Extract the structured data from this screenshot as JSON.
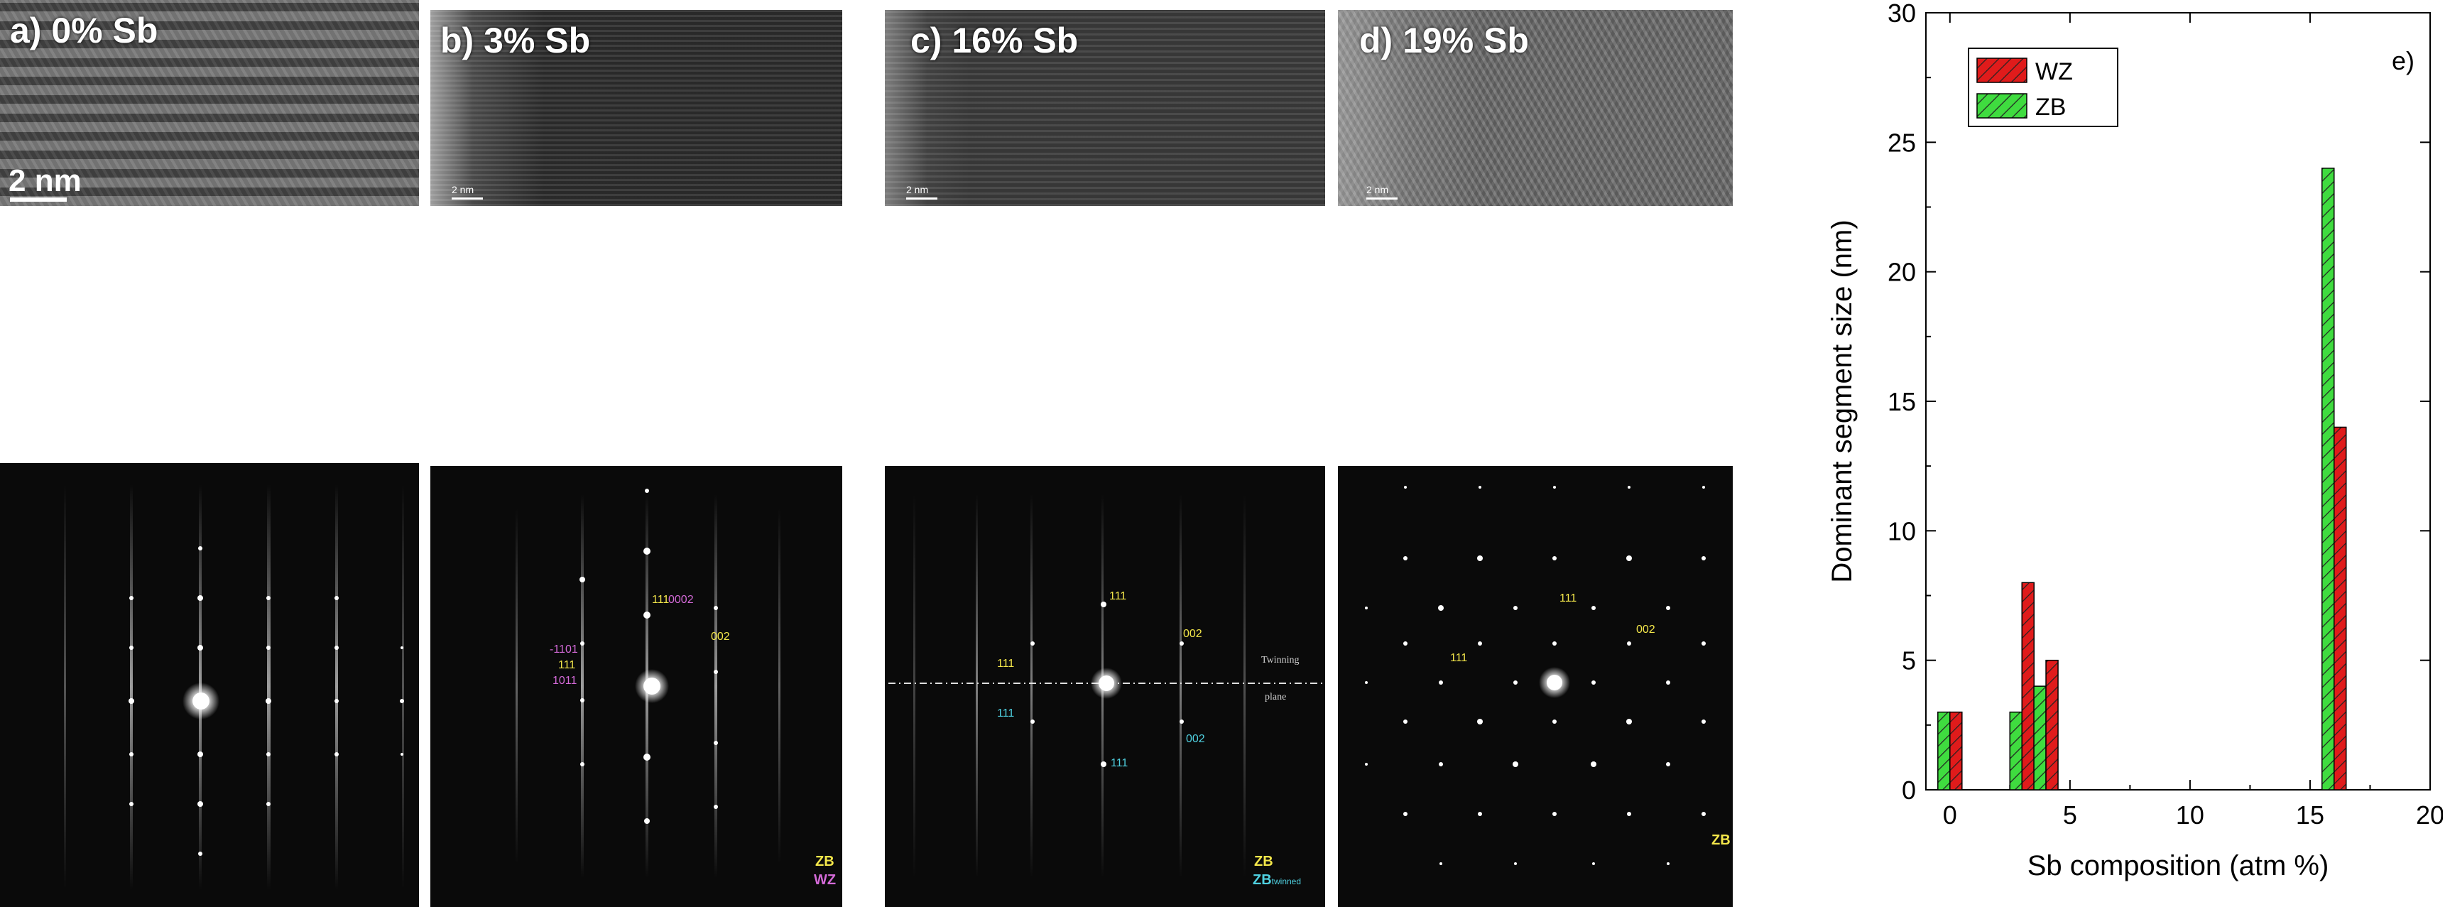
{
  "panels": {
    "a_label": "a) 0% Sb",
    "b_label": "b) 3% Sb",
    "c_label": "c) 16% Sb",
    "d_label": "d) 19% Sb",
    "scale_a": "2 nm",
    "scale_b": "2 nm",
    "scale_c": "2 nm",
    "scale_d": "2 nm"
  },
  "diffraction": {
    "b": {
      "l111_top": "111",
      "l0002": "0002",
      "l002": "002",
      "l1_101": "-1101",
      "l111_mid": "111",
      "l10_11": "1011",
      "zb": "ZB",
      "wz": "WZ"
    },
    "c": {
      "l111_top": "111",
      "l002_top": "002",
      "l111_left": "111",
      "twin1": "Twinning",
      "twin2": "plane",
      "l111_cyan_left": "111",
      "l002_cyan": "002",
      "l111_cyan_bottom": "111",
      "zb": "ZB",
      "zbt_main": "ZB",
      "zbt_sub": "twinned"
    },
    "d": {
      "l111_top": "111",
      "l002": "002",
      "l111_left": "111",
      "zb": "ZB"
    }
  },
  "chart_data": {
    "type": "bar",
    "panel_label": "e)",
    "xlabel": "Sb composition (atm %)",
    "ylabel": "Dominant segment size (nm)",
    "xlim": [
      -1,
      20
    ],
    "ylim": [
      0,
      30
    ],
    "xticks": [
      0,
      5,
      10,
      15,
      20
    ],
    "yticks": [
      0,
      5,
      10,
      15,
      20,
      25,
      30
    ],
    "x": [
      0,
      3,
      4,
      16
    ],
    "series": [
      {
        "name": "WZ",
        "values": [
          3,
          8,
          5,
          14
        ],
        "color": "#e01b1b"
      },
      {
        "name": "ZB",
        "values": [
          3,
          3,
          4,
          24
        ],
        "color": "#3fdc3f"
      }
    ],
    "legend_position": "top-left"
  }
}
